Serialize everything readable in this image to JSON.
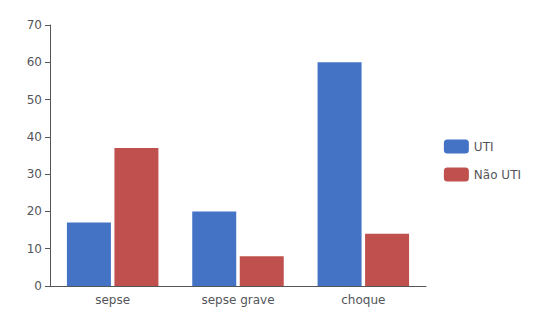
{
  "chart_data": {
    "type": "bar",
    "categories": [
      "sepse",
      "sepse grave",
      "choque"
    ],
    "series": [
      {
        "name": "UTI",
        "color": "#4472C4",
        "values": [
          17,
          20,
          60
        ]
      },
      {
        "name": "Não UTI",
        "color": "#C0504D",
        "values": [
          37,
          8,
          14
        ]
      }
    ],
    "ylim": [
      0,
      70
    ],
    "yticks": [
      0,
      10,
      20,
      30,
      40,
      50,
      60,
      70
    ],
    "grid": false,
    "legend": "right"
  }
}
